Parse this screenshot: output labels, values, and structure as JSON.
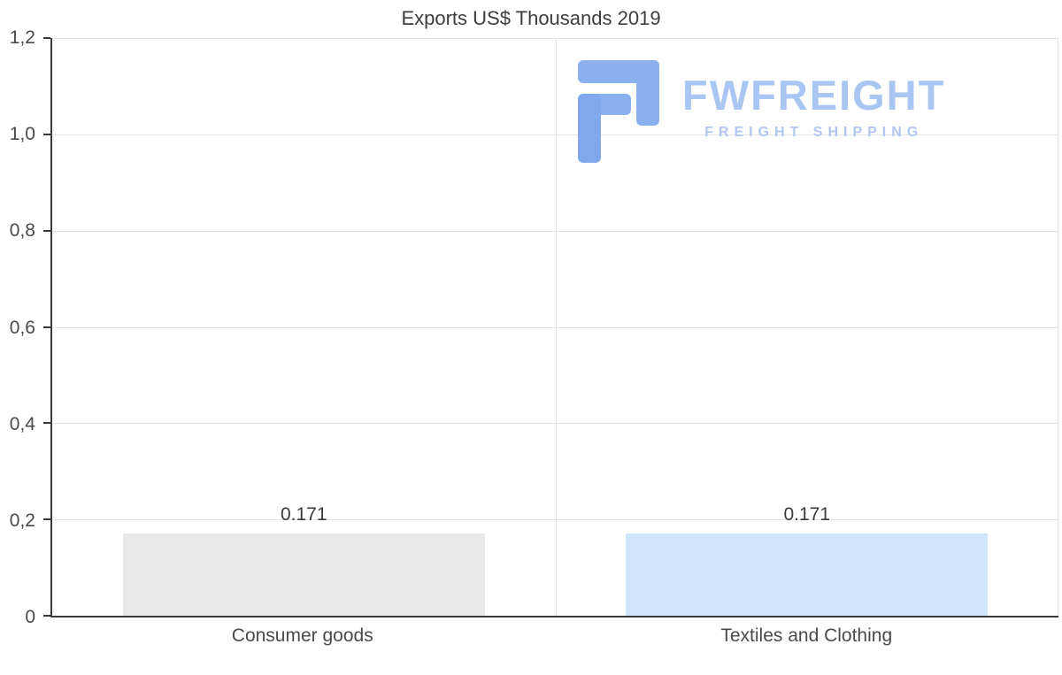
{
  "page": {
    "background": "#ffffff"
  },
  "chart_data": {
    "type": "bar",
    "title": "Exports US$ Thousands 2019",
    "categories": [
      "Consumer goods",
      "Textiles and Clothing"
    ],
    "values": [
      0.171,
      0.171
    ],
    "value_labels": [
      "0.171",
      "0.171"
    ],
    "bar_colors": [
      "#e8e8e8",
      "#d0e4fb"
    ],
    "ylim": [
      0,
      1.2
    ],
    "yticks_top_to_bottom": [
      "1,2",
      "1,0",
      "0,8",
      "0,6",
      "0,4",
      "0,2",
      "0"
    ],
    "xlabel": "",
    "ylabel": "",
    "grid": true,
    "legend": "none"
  },
  "watermark": {
    "brand": "FWFREIGHT",
    "tagline": "FREIGHT SHIPPING",
    "brand_color": "#a9c5f2",
    "icon": "fwfreight-logo-icon",
    "icon_color": "#8ab1ee"
  }
}
